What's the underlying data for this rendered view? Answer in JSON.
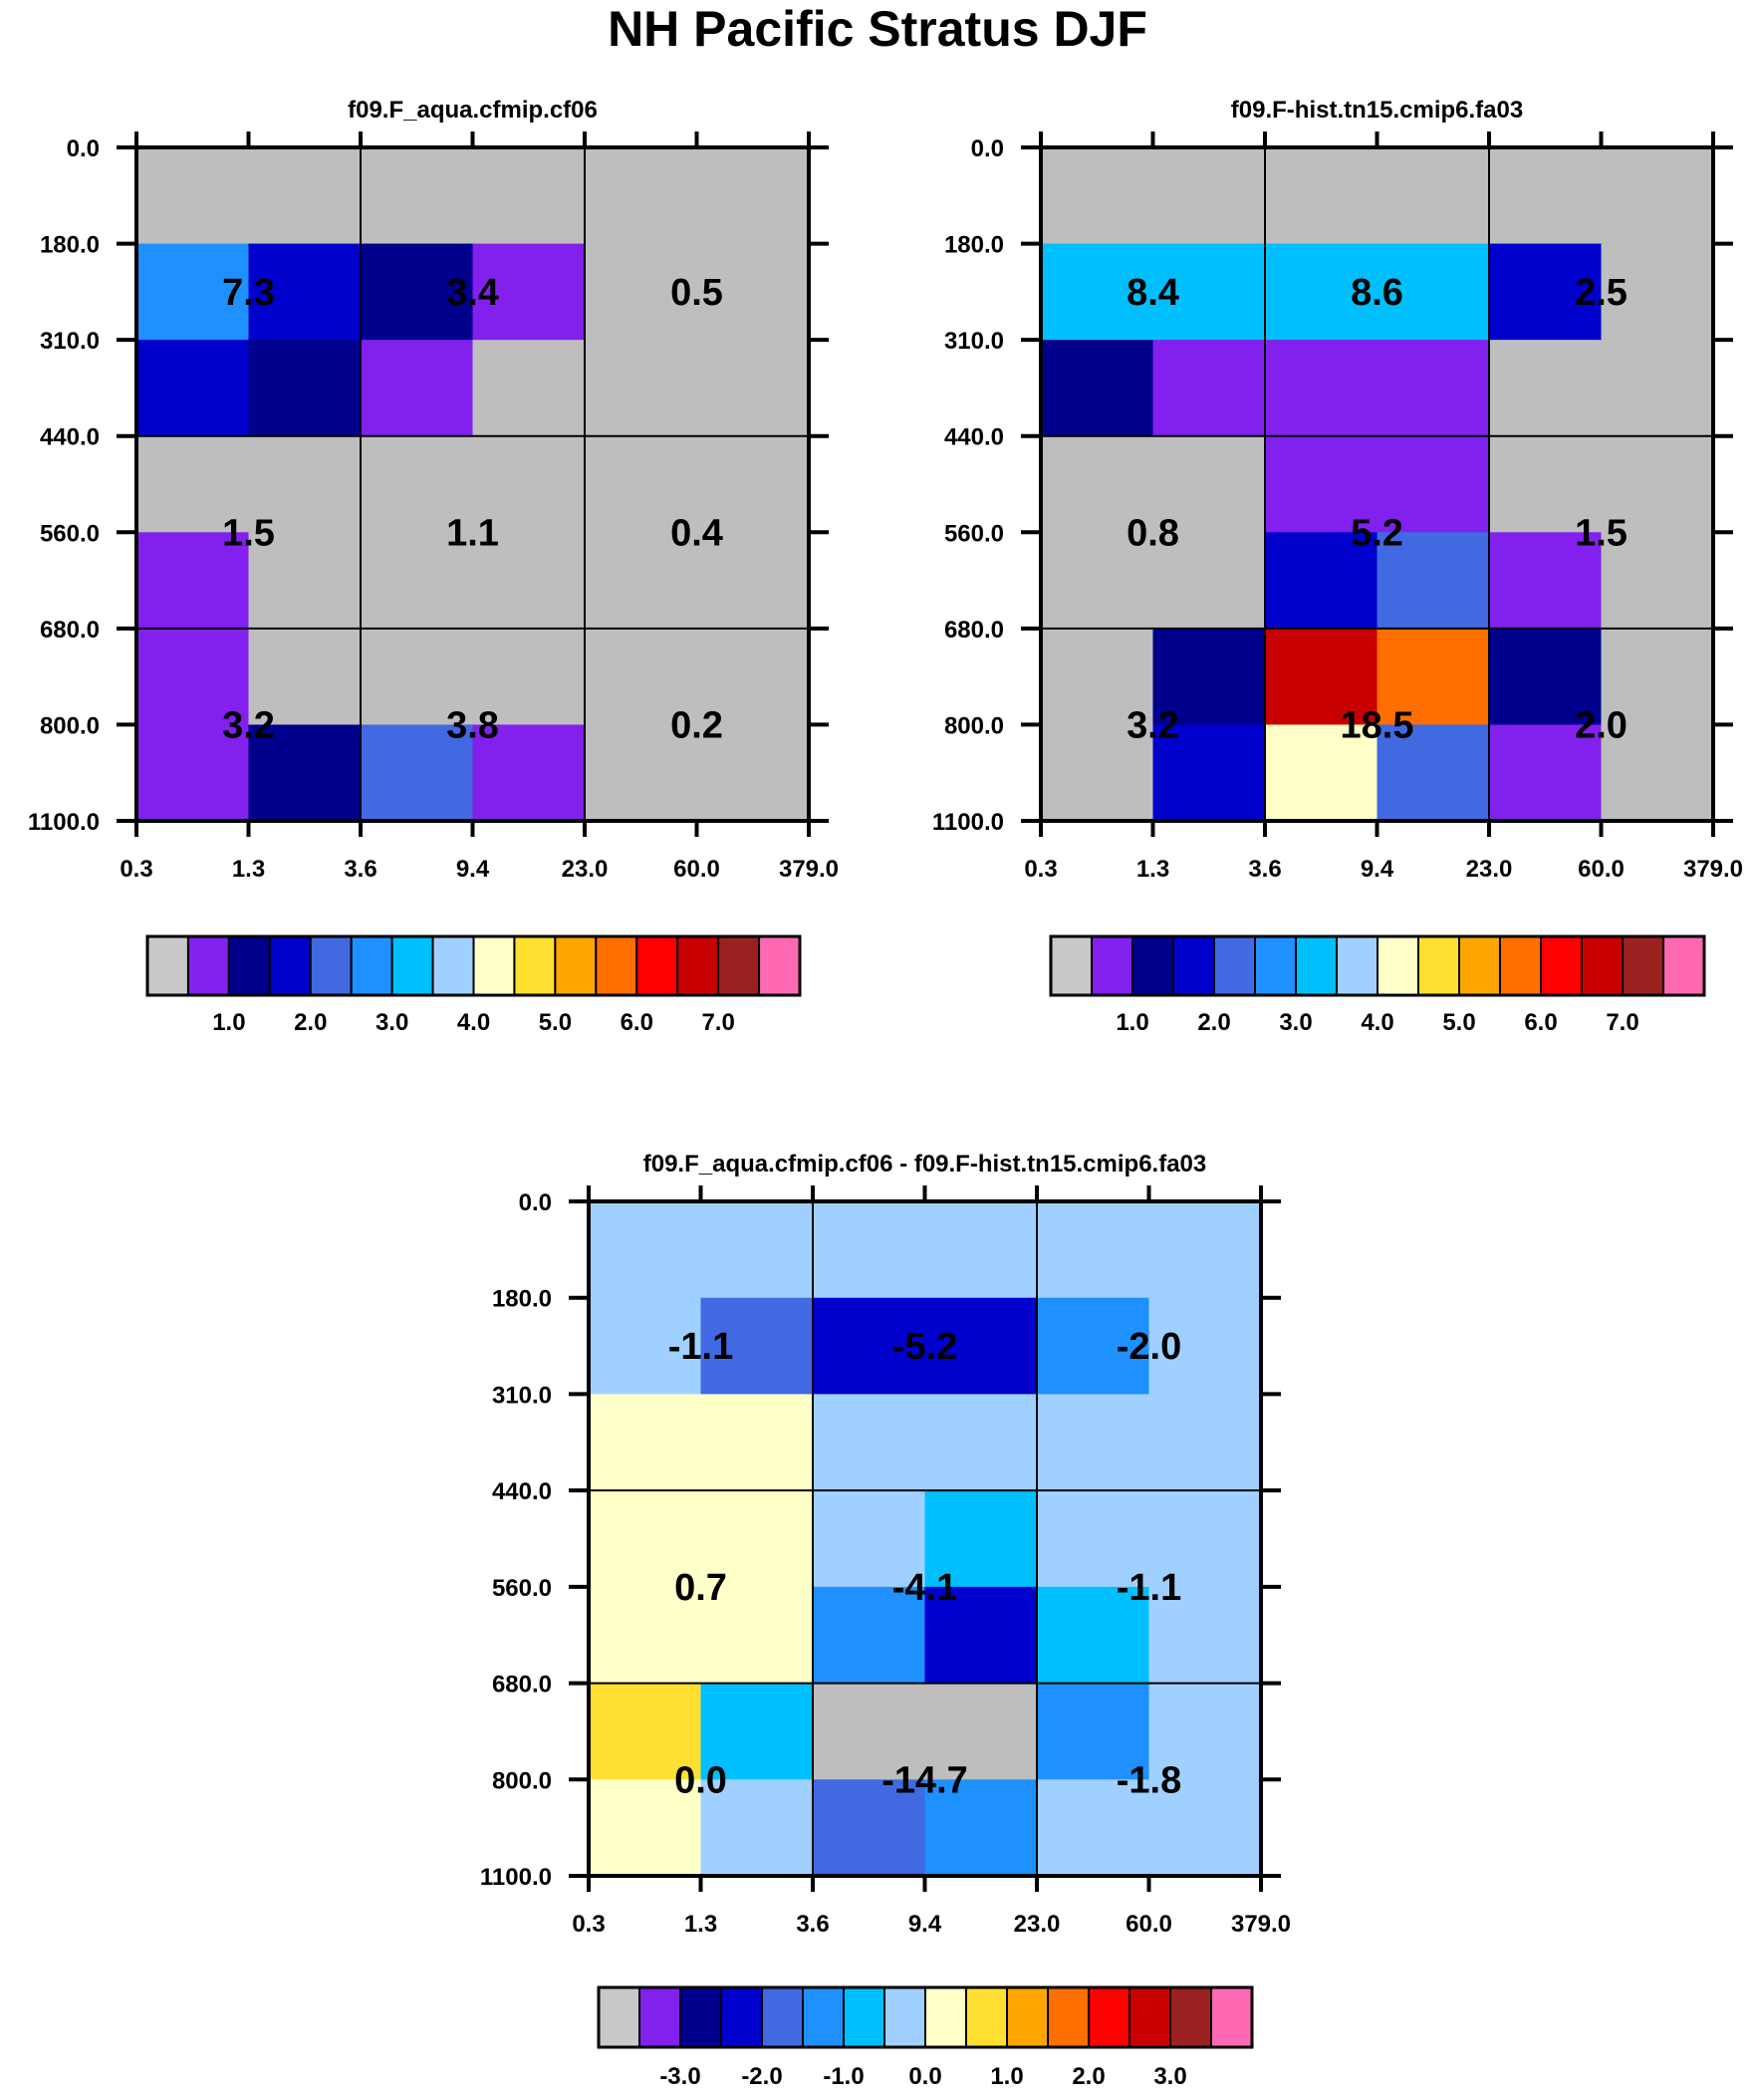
{
  "title": "NH Pacific Stratus DJF",
  "palette": [
    "#bebebe",
    "#8220ee",
    "#00008c",
    "#0000cd",
    "#4169e1",
    "#1e90ff",
    "#00bfff",
    "#a0d0ff",
    "#ffffc8",
    "#ffe030",
    "#ffa500",
    "#ff6f00",
    "#ff0000",
    "#c80000",
    "#9b2020",
    "#ff69b4"
  ],
  "colorbar_gray": "#c8c8c8",
  "chart_data": [
    {
      "type": "heatmap",
      "title": "f09.F_aqua.cfmip.cf06",
      "x_ticks": [
        "0.3",
        "1.3",
        "3.6",
        "9.4",
        "23.0",
        "60.0",
        "379.0"
      ],
      "y_ticks": [
        "0.0",
        "180.0",
        "310.0",
        "440.0",
        "560.0",
        "680.0",
        "800.0",
        "1100.0"
      ],
      "cell_color_index": [
        [
          0,
          0,
          0,
          0,
          0,
          0
        ],
        [
          5,
          3,
          2,
          1,
          0,
          0
        ],
        [
          3,
          2,
          1,
          0,
          0,
          0
        ],
        [
          0,
          0,
          0,
          0,
          0,
          0
        ],
        [
          1,
          0,
          0,
          0,
          0,
          0
        ],
        [
          1,
          0,
          0,
          0,
          0,
          0
        ],
        [
          1,
          2,
          4,
          1,
          0,
          0
        ]
      ],
      "block_values": [
        [
          "7.3",
          "3.4",
          "0.5"
        ],
        [
          "1.5",
          "1.1",
          "0.4"
        ],
        [
          "3.2",
          "3.8",
          "0.2"
        ]
      ],
      "colorbar_labels": [
        "1.0",
        "2.0",
        "3.0",
        "4.0",
        "5.0",
        "6.0",
        "7.0"
      ]
    },
    {
      "type": "heatmap",
      "title": "f09.F-hist.tn15.cmip6.fa03",
      "x_ticks": [
        "0.3",
        "1.3",
        "3.6",
        "9.4",
        "23.0",
        "60.0",
        "379.0"
      ],
      "y_ticks": [
        "0.0",
        "180.0",
        "310.0",
        "440.0",
        "560.0",
        "680.0",
        "800.0",
        "1100.0"
      ],
      "cell_color_index": [
        [
          0,
          0,
          0,
          0,
          0,
          0
        ],
        [
          6,
          6,
          6,
          6,
          3,
          0
        ],
        [
          2,
          1,
          1,
          1,
          0,
          0
        ],
        [
          0,
          0,
          1,
          1,
          0,
          0
        ],
        [
          0,
          0,
          3,
          4,
          1,
          0
        ],
        [
          0,
          2,
          13,
          11,
          2,
          0
        ],
        [
          0,
          3,
          8,
          4,
          1,
          0
        ]
      ],
      "block_values": [
        [
          "8.4",
          "8.6",
          "2.5"
        ],
        [
          "0.8",
          "5.2",
          "1.5"
        ],
        [
          "3.2",
          "18.5",
          "2.0"
        ]
      ],
      "colorbar_labels": [
        "1.0",
        "2.0",
        "3.0",
        "4.0",
        "5.0",
        "6.0",
        "7.0"
      ]
    },
    {
      "type": "heatmap",
      "title": "f09.F_aqua.cfmip.cf06 - f09.F-hist.tn15.cmip6.fa03",
      "x_ticks": [
        "0.3",
        "1.3",
        "3.6",
        "9.4",
        "23.0",
        "60.0",
        "379.0"
      ],
      "y_ticks": [
        "0.0",
        "180.0",
        "310.0",
        "440.0",
        "560.0",
        "680.0",
        "800.0",
        "1100.0"
      ],
      "cell_color_index": [
        [
          7,
          7,
          7,
          7,
          7,
          7
        ],
        [
          7,
          4,
          3,
          3,
          5,
          7
        ],
        [
          8,
          8,
          7,
          7,
          7,
          7
        ],
        [
          8,
          8,
          7,
          6,
          7,
          7
        ],
        [
          8,
          8,
          5,
          3,
          6,
          7
        ],
        [
          9,
          6,
          0,
          0,
          5,
          7
        ],
        [
          8,
          7,
          4,
          5,
          7,
          7
        ]
      ],
      "block_values": [
        [
          "-1.1",
          "-5.2",
          "-2.0"
        ],
        [
          "0.7",
          "-4.1",
          "-1.1"
        ],
        [
          "0.0",
          "-14.7",
          "-1.8"
        ]
      ],
      "colorbar_labels": [
        "-3.0",
        "-2.0",
        "-1.0",
        "0.0",
        "1.0",
        "2.0",
        "3.0"
      ]
    }
  ]
}
